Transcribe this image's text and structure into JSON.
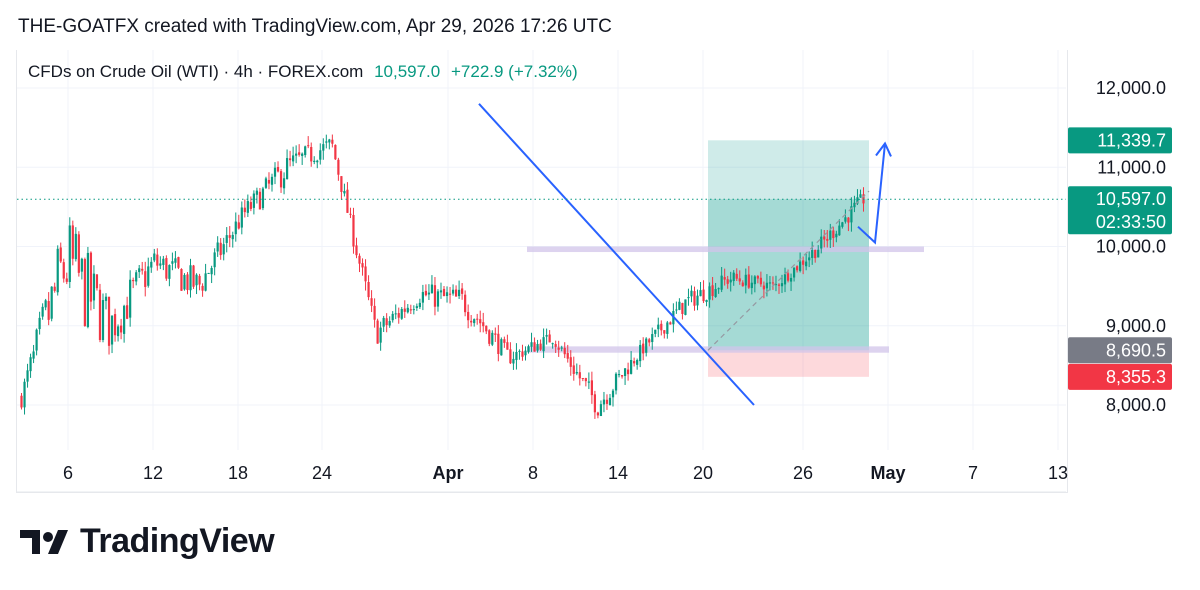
{
  "header": {
    "text": "THE-GOATFX created with TradingView.com, Apr 29, 2026 17:26 UTC"
  },
  "legend": {
    "symbol": "CFDs on Crude Oil (WTI) · 4h · FOREX.com",
    "price": "10,597.0",
    "change": "+722.9 (+7.32%)"
  },
  "brand": {
    "name": "TradingView",
    "logo_icon": "tradingview-logo-icon"
  },
  "colors": {
    "up": "#089981",
    "down": "#f23645",
    "trendline": "#2962ff",
    "zone": "#d1c4e9",
    "target_zone": "#26a69a",
    "stop_zone": "#f7525f",
    "gray_tag": "#787b86"
  },
  "chart_data": {
    "type": "candlestick",
    "timeframe": "4h",
    "ylim": [
      7500,
      12500
    ],
    "y_ticks": [
      {
        "value": 8000,
        "label": "8,000.0"
      },
      {
        "value": 9000,
        "label": "9,000.0"
      },
      {
        "value": 10000,
        "label": "10,000.0"
      },
      {
        "value": 11000,
        "label": "11,000.0"
      },
      {
        "value": 12000,
        "label": "12,000.0"
      }
    ],
    "x_ticks": [
      {
        "label": "6",
        "bold": false
      },
      {
        "label": "12",
        "bold": false
      },
      {
        "label": "18",
        "bold": false
      },
      {
        "label": "24",
        "bold": false
      },
      {
        "label": "Apr",
        "bold": true
      },
      {
        "label": "8",
        "bold": false
      },
      {
        "label": "14",
        "bold": false
      },
      {
        "label": "20",
        "bold": false
      },
      {
        "label": "26",
        "bold": false
      },
      {
        "label": "May",
        "bold": true
      },
      {
        "label": "7",
        "bold": false
      },
      {
        "label": "13",
        "bold": false
      }
    ],
    "price_tags": [
      {
        "value": 11339.7,
        "label": "11,339.7",
        "color": "#089981"
      },
      {
        "value": 10597.0,
        "label": "10,597.0",
        "sub": "02:33:50",
        "color": "#089981"
      },
      {
        "value": 8690.5,
        "label": "8,690.5",
        "color": "#787b86"
      },
      {
        "value": 8355.3,
        "label": "8,355.3",
        "color": "#f23645"
      }
    ],
    "current_price": 10597.0,
    "trendline": {
      "start": [
        0,
        11800
      ],
      "end": [
        1,
        8000
      ]
    },
    "zones": [
      {
        "low": 9930,
        "high": 10000
      },
      {
        "low": 8660,
        "high": 8740
      }
    ],
    "position": {
      "entry": 8690.5,
      "target": 11339.7,
      "stop": 8355.3
    },
    "anchors": [
      {
        "price": 8100,
        "range": [
          7850,
          8600
        ]
      },
      {
        "price": 9800,
        "range": [
          7950,
          11900
        ]
      },
      {
        "price": 9000,
        "range": [
          7600,
          9600
        ]
      },
      {
        "price": 9800,
        "range": [
          9100,
          10300
        ]
      },
      {
        "price": 9500,
        "range": [
          9000,
          10200
        ]
      },
      {
        "price": 10400,
        "range": [
          9900,
          10700
        ]
      },
      {
        "price": 11000,
        "range": [
          10300,
          11400
        ]
      },
      {
        "price": 11300,
        "range": [
          10800,
          11400
        ]
      },
      {
        "price": 8900,
        "range": [
          8600,
          9500
        ]
      },
      {
        "price": 9400,
        "range": [
          8950,
          9750
        ]
      },
      {
        "price": 9300,
        "range": [
          8900,
          10050
        ]
      },
      {
        "price": 8600,
        "range": [
          8300,
          8900
        ]
      },
      {
        "price": 8850,
        "range": [
          8500,
          9000
        ]
      },
      {
        "price": 8000,
        "range": [
          7650,
          8600
        ]
      },
      {
        "price": 8700,
        "range": [
          8550,
          9050
        ]
      },
      {
        "price": 9300,
        "range": [
          8900,
          9600
        ]
      },
      {
        "price": 9600,
        "range": [
          9200,
          9800
        ]
      },
      {
        "price": 9500,
        "range": [
          9300,
          9700
        ]
      },
      {
        "price": 10000,
        "range": [
          9700,
          10300
        ]
      },
      {
        "price": 10600,
        "range": [
          10100,
          10700
        ]
      }
    ]
  }
}
